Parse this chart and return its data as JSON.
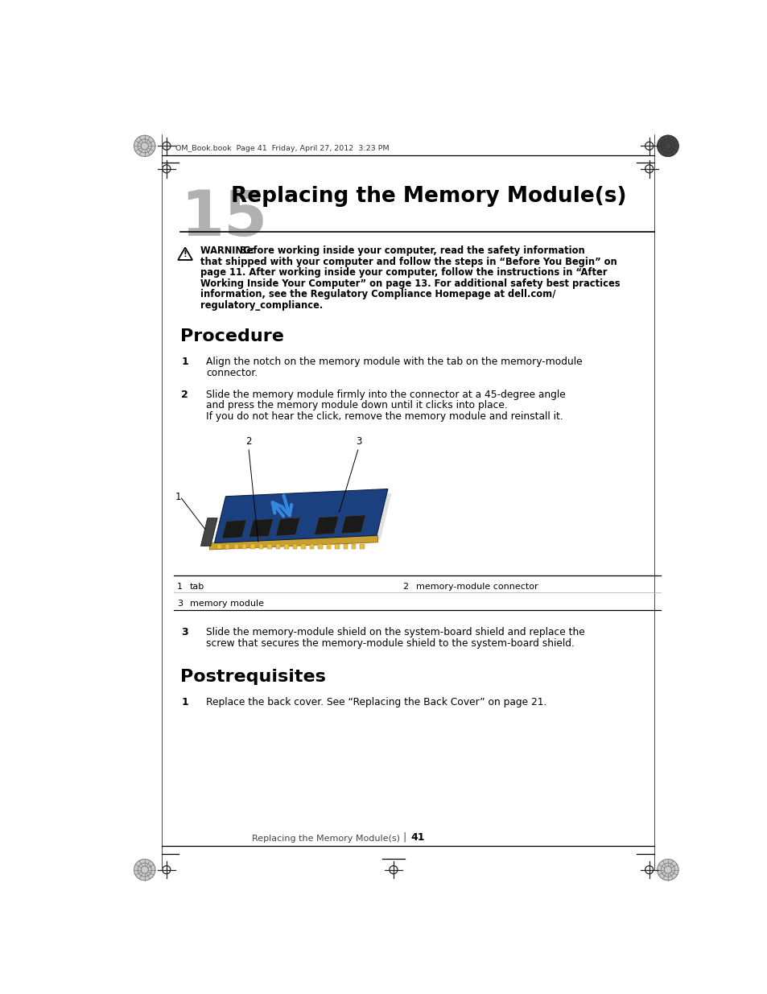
{
  "bg_color": "#ffffff",
  "page_width": 9.54,
  "page_height": 12.35,
  "dpi": 100,
  "header_text": "OM_Book.book  Page 41  Friday, April 27, 2012  3:23 PM",
  "chapter_num": "15",
  "chapter_title": "Replacing the Memory Module(s)",
  "warning_line1_bold": "WARNING:  ",
  "warning_line1_rest": "Before working inside your computer, read the safety information",
  "warning_lines_rest": [
    "that shipped with your computer and follow the steps in “Before You Begin” on",
    "page 11. After working inside your computer, follow the instructions in “After",
    "Working Inside Your Computer” on page 13. For additional safety best practices",
    "information, see the Regulatory Compliance Homepage at dell.com/",
    "regulatory_compliance."
  ],
  "section1_title": "Procedure",
  "proc_step1_num": "1",
  "proc_step1_line1": "Align the notch on the memory module with the tab on the memory-module",
  "proc_step1_line2": "connector.",
  "proc_step2_num": "2",
  "proc_step2_line1": "Slide the memory module firmly into the connector at a 45-degree angle",
  "proc_step2_line2": "and press the memory module down until it clicks into place.",
  "proc_step2_line3": "If you do not hear the click, remove the memory module and reinstall it.",
  "legend_row1_n1": "1",
  "legend_row1_t1": "tab",
  "legend_row1_n2": "2",
  "legend_row1_t2": "memory-module connector",
  "legend_row2_n1": "3",
  "legend_row2_t1": "memory module",
  "proc_step3_num": "3",
  "proc_step3_line1": "Slide the memory-module shield on the system-board shield and replace the",
  "proc_step3_line2": "screw that secures the memory-module shield to the system-board shield.",
  "section2_title": "Postrequisites",
  "post_step1_num": "1",
  "post_step1_text": "Replace the back cover. See “Replacing the Back Cover” on page 21.",
  "footer_text": "Replacing the Memory Module(s)",
  "footer_page": "41",
  "chapter_num_color": "#b0b0b0",
  "pcb_color": "#1a4080",
  "pcb_edge_color": "#0d2040",
  "gold_color": "#c8a030",
  "chip_color": "#1a1a1a",
  "arrow_color": "#3388dd",
  "shadow_color": "#888888"
}
